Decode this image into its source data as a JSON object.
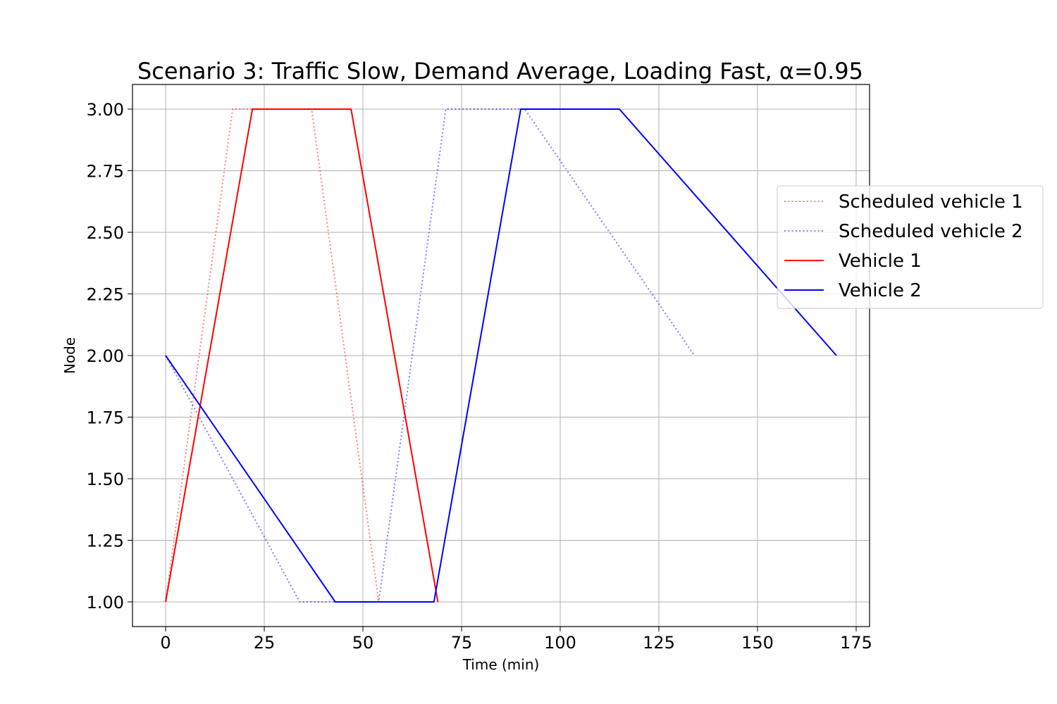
{
  "chart_data": {
    "type": "line",
    "title": "Scenario 3: Traffic Slow, Demand Average, Loading Fast, α=0.95",
    "xlabel": "Time (min)",
    "ylabel": "Node",
    "xlim": [
      -8.4,
      178.4
    ],
    "ylim": [
      0.9,
      3.1
    ],
    "xticks": [
      0,
      25,
      50,
      75,
      100,
      125,
      150,
      175
    ],
    "yticks": [
      1.0,
      1.25,
      1.5,
      1.75,
      2.0,
      2.25,
      2.5,
      2.75,
      3.0
    ],
    "xtick_labels": [
      "0",
      "25",
      "50",
      "75",
      "100",
      "125",
      "150",
      "175"
    ],
    "ytick_labels": [
      "1.00",
      "1.25",
      "1.50",
      "1.75",
      "2.00",
      "2.25",
      "2.50",
      "2.75",
      "3.00"
    ],
    "grid": true,
    "legend_position": "right",
    "series": [
      {
        "name": "Scheduled vehicle 1",
        "color": "#ff0000",
        "style": "dotted",
        "opacity": 0.5,
        "points": [
          [
            0,
            1
          ],
          [
            17,
            3
          ],
          [
            37,
            3
          ],
          [
            54,
            1
          ]
        ]
      },
      {
        "name": "Scheduled vehicle 2",
        "color": "#0000ff",
        "style": "dotted",
        "opacity": 0.5,
        "points": [
          [
            0,
            2
          ],
          [
            34,
            1
          ],
          [
            54,
            1
          ],
          [
            71,
            3
          ],
          [
            91,
            3
          ],
          [
            134,
            2
          ]
        ]
      },
      {
        "name": "Vehicle 1",
        "color": "#ff0000",
        "style": "solid",
        "opacity": 1,
        "points": [
          [
            0,
            1
          ],
          [
            22,
            3
          ],
          [
            47,
            3
          ],
          [
            69,
            1
          ]
        ]
      },
      {
        "name": "Vehicle 2",
        "color": "#0000ff",
        "style": "solid",
        "opacity": 1,
        "points": [
          [
            0,
            2
          ],
          [
            43,
            1
          ],
          [
            68,
            1
          ],
          [
            90,
            3
          ],
          [
            115,
            3
          ],
          [
            170,
            2
          ]
        ]
      }
    ]
  }
}
